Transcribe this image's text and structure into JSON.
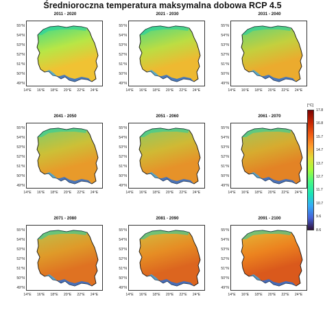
{
  "title": "Średnioroczna temperatura maksymalna dobowa RCP 4.5",
  "y_ticks": [
    "55°N",
    "54°N",
    "53°N",
    "52°N",
    "51°N",
    "50°N",
    "49°N"
  ],
  "x_ticks": [
    "14°E",
    "16°E",
    "18°E",
    "20°E",
    "22°E",
    "24°E"
  ],
  "panels": [
    {
      "label": "2011 - 2020",
      "level": 0.0
    },
    {
      "label": "2021 - 2030",
      "level": 0.08
    },
    {
      "label": "2031 - 2040",
      "level": 0.2
    },
    {
      "label": "2041 - 2050",
      "level": 0.35
    },
    {
      "label": "2051 - 2060",
      "level": 0.42
    },
    {
      "label": "2061 - 2070",
      "level": 0.55
    },
    {
      "label": "2071 - 2080",
      "level": 0.7
    },
    {
      "label": "2081 - 2090",
      "level": 0.82
    },
    {
      "label": "2091 - 2100",
      "level": 0.92
    }
  ],
  "colorbar": {
    "unit": "[°C]",
    "ticks": [
      "17.8",
      "16.8",
      "15.7",
      "14.7",
      "13.7",
      "12.7",
      "11.7",
      "10.7",
      "9.6",
      "8.6"
    ],
    "colors": [
      "#7a0403",
      "#c42503",
      "#f05b12",
      "#fe9b2d",
      "#e1dd37",
      "#a4fc3c",
      "#46f884",
      "#1ae4b6",
      "#35abf8",
      "#4662d7",
      "#30123b"
    ]
  }
}
